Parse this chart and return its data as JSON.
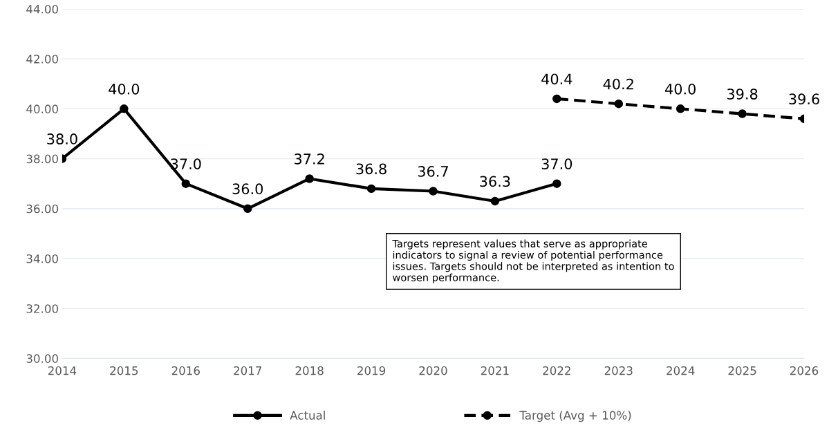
{
  "chart_data": {
    "type": "line",
    "categories": [
      "2014",
      "2015",
      "2016",
      "2017",
      "2018",
      "2019",
      "2020",
      "2021",
      "2022",
      "2023",
      "2024",
      "2025",
      "2026"
    ],
    "series": [
      {
        "name": "Actual",
        "color": "#000000",
        "line_style": "solid",
        "values": [
          38.0,
          40.0,
          37.0,
          36.0,
          37.2,
          36.8,
          36.7,
          36.3,
          37.0,
          null,
          null,
          null,
          null
        ],
        "value_labels": [
          "38.0",
          "40.0",
          "37.0",
          "36.0",
          "37.2",
          "36.8",
          "36.7",
          "36.3",
          "37.0",
          null,
          null,
          null,
          null
        ]
      },
      {
        "name": "Target (Avg + 10%)",
        "color": "#000000",
        "line_style": "dashed",
        "values": [
          null,
          null,
          null,
          null,
          null,
          null,
          null,
          null,
          40.4,
          40.2,
          40.0,
          39.8,
          39.6
        ],
        "value_labels": [
          null,
          null,
          null,
          null,
          null,
          null,
          null,
          null,
          "40.4",
          "40.2",
          "40.0",
          "39.8",
          "39.6"
        ]
      }
    ],
    "ylim": [
      30,
      44
    ],
    "yticks": [
      {
        "value": 30,
        "label": "30.00"
      },
      {
        "value": 32,
        "label": "32.00"
      },
      {
        "value": 34,
        "label": "34.00"
      },
      {
        "value": 36,
        "label": "36.00"
      },
      {
        "value": 38,
        "label": "38.00"
      },
      {
        "value": 40,
        "label": "40.00"
      },
      {
        "value": 42,
        "label": "42.00"
      },
      {
        "value": 44,
        "label": "44.00"
      }
    ],
    "grid": "y",
    "legend": "bottom",
    "marker": "circle",
    "annotations": [
      "Targets represent values that serve as appropriate indicators to signal a review of potential performance issues. Targets should not be interpreted as intention to worsen performance."
    ]
  }
}
